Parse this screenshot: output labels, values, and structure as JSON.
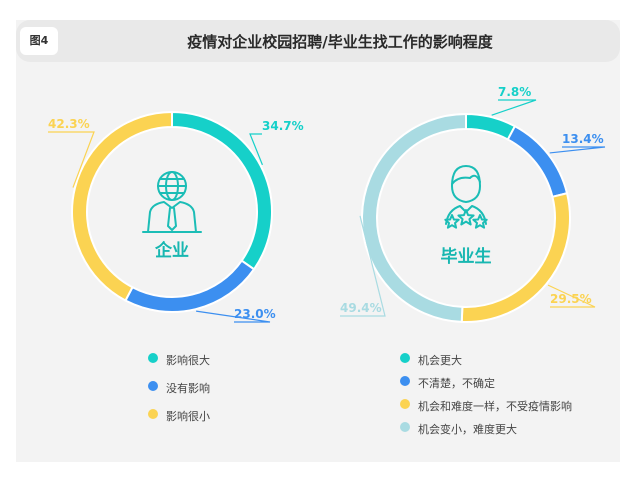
{
  "figure_badge": "图4",
  "title": "疫情对企业校园招聘/毕业生找工作的影响程度",
  "colors": {
    "teal": "#16d0c9",
    "blue": "#3c8ff0",
    "yellow": "#fbd352",
    "lightblue": "#a9dbe2"
  },
  "chart_data": [
    {
      "type": "pie",
      "center_label": "企业",
      "icon": "businessman-globe-icon",
      "slices": [
        {
          "label": "影响很大",
          "value": 34.7,
          "value_label": "34.7%",
          "color": "#16d0c9"
        },
        {
          "label": "没有影响",
          "value": 23.0,
          "value_label": "23.0%",
          "color": "#3c8ff0"
        },
        {
          "label": "影响很小",
          "value": 42.3,
          "value_label": "42.3%",
          "color": "#fbd352"
        }
      ]
    },
    {
      "type": "pie",
      "center_label": "毕业生",
      "icon": "graduate-stars-icon",
      "slices": [
        {
          "label": "机会更大",
          "value": 7.8,
          "value_label": "7.8%",
          "color": "#16d0c9"
        },
        {
          "label": "不清楚，不确定",
          "value": 13.4,
          "value_label": "13.4%",
          "color": "#3c8ff0"
        },
        {
          "label": "机会和难度一样，不受疫情影响",
          "value": 29.5,
          "value_label": "29.5%",
          "color": "#fbd352"
        },
        {
          "label": "机会变小，难度更大",
          "value": 49.4,
          "value_label": "49.4%",
          "color": "#a9dbe2"
        }
      ]
    }
  ]
}
